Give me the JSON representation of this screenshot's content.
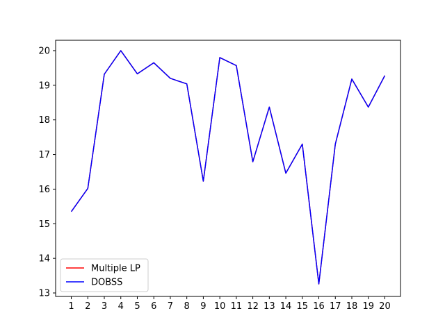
{
  "chart_data": {
    "type": "line",
    "x": [
      1,
      2,
      3,
      4,
      5,
      6,
      7,
      8,
      9,
      10,
      11,
      12,
      13,
      14,
      15,
      16,
      17,
      18,
      19,
      20
    ],
    "xticks": [
      "1",
      "2",
      "3",
      "4",
      "5",
      "6",
      "7",
      "8",
      "9",
      "10",
      "11",
      "12",
      "13",
      "14",
      "15",
      "16",
      "17",
      "18",
      "19",
      "20"
    ],
    "yticks": [
      "13",
      "14",
      "15",
      "16",
      "17",
      "18",
      "19",
      "20"
    ],
    "xlim": [
      0.05,
      20.95
    ],
    "ylim": [
      12.9,
      20.3
    ],
    "title": "",
    "xlabel": "",
    "ylabel": "",
    "grid": false,
    "legend_position": "lower-left",
    "series": [
      {
        "name": "Multiple LP",
        "color": "#ff0000",
        "values": [
          15.35,
          16.02,
          19.32,
          20.0,
          19.33,
          19.65,
          19.2,
          19.04,
          16.23,
          19.8,
          19.57,
          16.79,
          18.37,
          16.46,
          17.3,
          13.26,
          17.3,
          19.18,
          18.37,
          19.28
        ]
      },
      {
        "name": "DOBSS",
        "color": "#0000ff",
        "values": [
          15.35,
          16.02,
          19.32,
          20.0,
          19.33,
          19.65,
          19.2,
          19.04,
          16.23,
          19.8,
          19.57,
          16.79,
          18.37,
          16.46,
          17.3,
          13.26,
          17.3,
          19.18,
          18.37,
          19.28
        ]
      }
    ]
  }
}
